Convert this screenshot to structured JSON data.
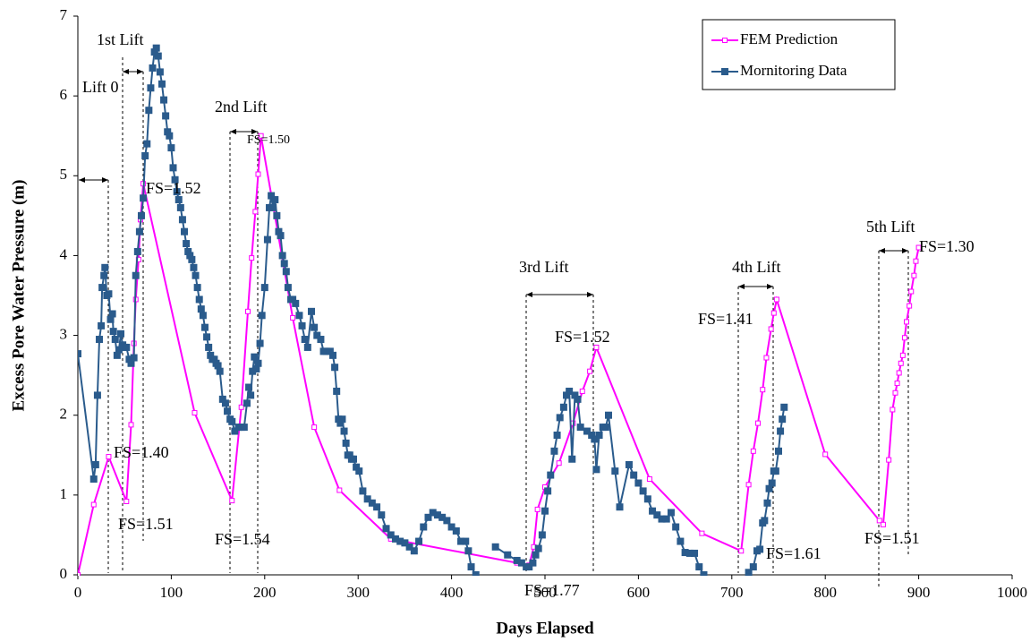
{
  "chart_data": {
    "type": "line",
    "x_label": "Days Elapsed",
    "y_label": "Excess Pore Water Pressure (m)",
    "xlim": [
      0,
      1000
    ],
    "xticks": [
      0,
      100,
      200,
      300,
      400,
      500,
      600,
      700,
      800,
      900,
      1000
    ],
    "ylim": [
      0,
      7
    ],
    "yticks": [
      0,
      1,
      2,
      3,
      4,
      5,
      6,
      7
    ],
    "legend": "top-right",
    "series": [
      {
        "name": "FEM Prediction",
        "color": "#ff00ff",
        "marker": "hollow-square",
        "x": [
          0,
          17,
          33,
          52,
          57,
          60,
          62,
          65,
          67,
          70,
          125,
          165,
          175,
          182,
          186,
          190,
          193,
          196,
          230,
          253,
          280,
          335,
          470,
          483,
          488,
          492,
          500,
          515,
          530,
          540,
          548,
          555,
          612,
          668,
          710,
          718,
          723,
          728,
          733,
          737,
          742,
          745,
          748,
          800,
          858,
          862,
          868,
          872,
          875,
          877,
          879,
          881,
          883,
          885,
          887,
          890,
          892,
          895,
          897,
          900
        ],
        "values": [
          0,
          0.88,
          1.48,
          0.92,
          1.88,
          2.9,
          3.45,
          3.95,
          4.45,
          4.9,
          2.03,
          0.93,
          2.1,
          3.3,
          3.97,
          4.55,
          5.02,
          5.5,
          3.22,
          1.85,
          1.06,
          0.45,
          0.15,
          0.12,
          0.35,
          0.82,
          1.1,
          1.4,
          1.9,
          2.3,
          2.55,
          2.85,
          1.2,
          0.52,
          0.3,
          1.13,
          1.55,
          1.9,
          2.32,
          2.72,
          3.08,
          3.28,
          3.45,
          1.51,
          0.68,
          0.63,
          1.44,
          2.07,
          2.28,
          2.4,
          2.53,
          2.65,
          2.75,
          2.97,
          3.17,
          3.37,
          3.55,
          3.75,
          3.93,
          4.1
        ]
      },
      {
        "name": "Mornitoring Data",
        "color": "#2a5b8c",
        "marker": "filled-square",
        "x": [
          0,
          17,
          19,
          21,
          23,
          25,
          26,
          28,
          29,
          31,
          33,
          35,
          37,
          38,
          40,
          42,
          44,
          46,
          48,
          50,
          52,
          55,
          57,
          60,
          62,
          64,
          66,
          68,
          70,
          72,
          74,
          76,
          78,
          80,
          82,
          84,
          86,
          88,
          90,
          92,
          94,
          96,
          98,
          100,
          102,
          104,
          106,
          108,
          110,
          112,
          114,
          116,
          118,
          120,
          122,
          124,
          126,
          128,
          130,
          132,
          134,
          136,
          138,
          140,
          142,
          144,
          146,
          148,
          150,
          152,
          155,
          158,
          160,
          163,
          165,
          168,
          172,
          175,
          178,
          181,
          183,
          185,
          187,
          189,
          191,
          193,
          195,
          197,
          200,
          203,
          205,
          207,
          209,
          211,
          213,
          215,
          217,
          219,
          221,
          223,
          225,
          228,
          230,
          233,
          237,
          240,
          243,
          246,
          250,
          253,
          256,
          260,
          263,
          266,
          270,
          273,
          275,
          277,
          279,
          281,
          283,
          285,
          287,
          289,
          291,
          293,
          295,
          298,
          301,
          305,
          310,
          315,
          320,
          325,
          330,
          335,
          340,
          345,
          350,
          355,
          360,
          365,
          370,
          375,
          380,
          385,
          390,
          395,
          400,
          405,
          410,
          415,
          418,
          421,
          426,
          436,
          447,
          460,
          470,
          475,
          480,
          483,
          487,
          490,
          493,
          497,
          500,
          503,
          506,
          510,
          513,
          516,
          520,
          523,
          526,
          529,
          532,
          535,
          538,
          545,
          550,
          553,
          555,
          558,
          562,
          565,
          568,
          575,
          580,
          590,
          595,
          600,
          605,
          610,
          615,
          620,
          625,
          630,
          635,
          640,
          645,
          650,
          655,
          660,
          665,
          670,
          695,
          718,
          723,
          727,
          730,
          733,
          735,
          738,
          740,
          743,
          745,
          747,
          750,
          752,
          754,
          756
        ],
        "values": [
          2.77,
          1.2,
          1.38,
          2.25,
          2.95,
          3.12,
          3.6,
          3.75,
          3.85,
          3.5,
          3.52,
          3.2,
          3.27,
          3.05,
          2.95,
          2.75,
          2.82,
          3.02,
          2.88,
          2.85,
          2.85,
          2.7,
          2.65,
          2.72,
          3.75,
          4.05,
          4.3,
          4.5,
          4.72,
          5.25,
          5.4,
          5.82,
          6.1,
          6.35,
          6.55,
          6.6,
          6.5,
          6.3,
          6.15,
          5.95,
          5.75,
          5.55,
          5.5,
          5.35,
          5.1,
          4.95,
          4.8,
          4.7,
          4.6,
          4.45,
          4.3,
          4.15,
          4.05,
          4.0,
          3.95,
          3.85,
          3.75,
          3.6,
          3.45,
          3.33,
          3.25,
          3.1,
          2.98,
          2.85,
          2.75,
          2.7,
          2.7,
          2.65,
          2.62,
          2.55,
          2.2,
          2.15,
          2.05,
          1.95,
          1.92,
          1.8,
          1.85,
          1.85,
          1.85,
          2.15,
          2.35,
          2.25,
          2.55,
          2.73,
          2.58,
          2.65,
          2.9,
          3.25,
          3.6,
          4.2,
          4.6,
          4.75,
          4.6,
          4.7,
          4.5,
          4.3,
          4.25,
          4.0,
          3.9,
          3.8,
          3.6,
          3.45,
          3.45,
          3.4,
          3.25,
          3.12,
          2.95,
          2.85,
          3.3,
          3.1,
          3.0,
          2.95,
          2.8,
          2.8,
          2.8,
          2.75,
          2.6,
          2.3,
          1.95,
          1.9,
          1.95,
          1.8,
          1.65,
          1.5,
          1.5,
          1.45,
          1.45,
          1.35,
          1.3,
          1.05,
          0.95,
          0.9,
          0.85,
          0.75,
          0.58,
          0.5,
          0.45,
          0.42,
          0.4,
          0.35,
          0.3,
          0.42,
          0.6,
          0.72,
          0.78,
          0.75,
          0.72,
          0.68,
          0.6,
          0.55,
          0.42,
          0.42,
          0.3,
          0.1,
          0,
          null,
          0.35,
          0.25,
          0.18,
          0.15,
          0.1,
          0.1,
          0.15,
          0.25,
          0.33,
          0.5,
          0.8,
          1.05,
          1.25,
          1.55,
          1.75,
          1.97,
          2.1,
          2.25,
          2.3,
          1.45,
          2.25,
          2.2,
          1.85,
          1.8,
          1.75,
          1.7,
          1.32,
          1.75,
          1.85,
          1.85,
          2.0,
          1.3,
          0.85,
          1.38,
          1.25,
          1.15,
          1.05,
          0.95,
          0.8,
          0.75,
          0.7,
          0.7,
          0.78,
          0.6,
          0.42,
          0.28,
          0.27,
          0.27,
          0.1,
          0,
          null,
          0.03,
          0.1,
          0.3,
          0.32,
          0.65,
          0.68,
          0.9,
          1.08,
          1.15,
          1.3,
          1.3,
          1.55,
          1.8,
          1.95,
          2.1
        ]
      }
    ],
    "annotations": [
      "Lift 0",
      "1st Lift",
      "2nd Lift",
      "3rd Lift",
      "4th Lift",
      "5th Lift",
      "FS=1.40",
      "FS=1.51",
      "FS=1.52",
      "FS=1.50",
      "FS=1.54",
      "FS=1.77",
      "FS=1.52",
      "FS=1.41",
      "FS=1.61",
      "FS=1.51",
      "FS=1.30"
    ]
  }
}
